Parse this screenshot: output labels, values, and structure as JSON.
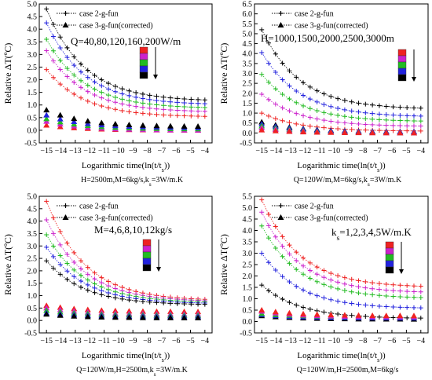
{
  "legend": {
    "series1": "case 2-g-fun",
    "series2": "case 3-g-fun(corrected)"
  },
  "palette": [
    "#000000",
    "#2222dd",
    "#22bb22",
    "#cc22cc",
    "#ee2222"
  ],
  "chart_data": [
    {
      "type": "scatter",
      "annotation": "Q=40,80,120,160,200W/m",
      "xlabel": "Logarithmic time(ln(t/t<sub>s</sub>))",
      "ylabel": "Relative ΔT(ºC)",
      "caption": "H=2500m,M=6kg/s,k<sub>s</sub>=3W/m.K",
      "xlim": [
        -15.5,
        -3.5
      ],
      "ylim": [
        -0.5,
        5.0
      ],
      "yticks": [
        -0.5,
        0.0,
        0.5,
        1.0,
        1.5,
        2.0,
        2.5,
        3.0,
        3.5,
        4.0,
        4.5,
        5.0
      ],
      "xticks": [
        -15,
        -14,
        -13,
        -12,
        -11,
        -10,
        -9,
        -8,
        -7,
        -6,
        -5,
        -4
      ],
      "curves_2g": [
        {
          "start": 2.4,
          "end": 0.55
        },
        {
          "start": 3.15,
          "end": 0.75
        },
        {
          "start": 3.6,
          "end": 0.9
        },
        {
          "start": 4.25,
          "end": 1.05
        },
        {
          "start": 4.8,
          "end": 1.2
        }
      ],
      "curves_3g": [
        {
          "start": 0.2,
          "end": 0.0
        },
        {
          "start": 0.35,
          "end": 0.0
        },
        {
          "start": 0.45,
          "end": 0.05
        },
        {
          "start": 0.6,
          "end": 0.1
        },
        {
          "start": 0.8,
          "end": 0.15
        }
      ]
    },
    {
      "type": "scatter",
      "annotation": "H=1000,1500,2000,2500,3000m",
      "xlabel": "Logarithmic time(ln(t/t<sub>s</sub>))",
      "ylabel": "Relative ΔT(ºC)",
      "caption": "Q=120W/m,M=6kg/s,k<sub>s</sub>=3W/m.K",
      "xlim": [
        -15.5,
        -3.5
      ],
      "ylim": [
        -0.5,
        6.5
      ],
      "yticks": [
        -0.5,
        0.0,
        0.5,
        1.0,
        1.5,
        2.0,
        2.5,
        3.0,
        3.5,
        4.0,
        4.5,
        5.0,
        5.5,
        6.0,
        6.5
      ],
      "xticks": [
        -15,
        -14,
        -13,
        -12,
        -11,
        -10,
        -9,
        -8,
        -7,
        -6,
        -5,
        -4
      ],
      "curves_2g": [
        {
          "start": 5.2,
          "end": 1.25
        },
        {
          "start": 4.05,
          "end": 0.85
        },
        {
          "start": 2.95,
          "end": 0.6
        },
        {
          "start": 1.95,
          "end": 0.35
        },
        {
          "start": 1.0,
          "end": 0.1
        }
      ],
      "curves_3g": [
        {
          "start": 0.55,
          "end": 0.05
        },
        {
          "start": 0.45,
          "end": 0.05
        },
        {
          "start": 0.35,
          "end": 0.0
        },
        {
          "start": 0.25,
          "end": 0.0
        },
        {
          "start": 0.15,
          "end": 0.0
        }
      ]
    },
    {
      "type": "scatter",
      "annotation": "M=4,6,8,10,12kg/s",
      "xlabel": "Logarithmic time(ln(t/t<sub>s</sub>))",
      "ylabel": "Relative ΔT(ºC)",
      "caption": "Q=120W/m,H=2500m,k<sub>s</sub>=3W/m.K",
      "xlim": [
        -15.5,
        -3.5
      ],
      "ylim": [
        -0.5,
        5.0
      ],
      "yticks": [
        -0.5,
        0.0,
        0.5,
        1.0,
        1.5,
        2.0,
        2.5,
        3.0,
        3.5,
        4.0,
        4.5,
        5.0
      ],
      "xticks": [
        -15,
        -14,
        -13,
        -12,
        -11,
        -10,
        -9,
        -8,
        -7,
        -6,
        -5,
        -4
      ],
      "curves_2g": [
        {
          "start": 4.8,
          "end": 0.85
        },
        {
          "start": 4.05,
          "end": 0.8
        },
        {
          "start": 3.45,
          "end": 0.75
        },
        {
          "start": 2.95,
          "end": 0.7
        },
        {
          "start": 2.4,
          "end": 0.65
        }
      ],
      "curves_3g": [
        {
          "start": 0.6,
          "end": 0.35
        },
        {
          "start": 0.5,
          "end": 0.25
        },
        {
          "start": 0.4,
          "end": 0.2
        },
        {
          "start": 0.3,
          "end": 0.15
        },
        {
          "start": 0.25,
          "end": 0.1
        }
      ]
    },
    {
      "type": "scatter",
      "annotation": "k<sub>s</sub>=1,2,3,4,5W/m.K",
      "xlabel": "Logarithmic time(ln(t/t<sub>s</sub>))",
      "ylabel": "Relative ΔT(ºC)",
      "caption": "Q=120W/m,H=2500m,M=6kg/s",
      "xlim": [
        -15.5,
        -3.5
      ],
      "ylim": [
        -0.5,
        5.5
      ],
      "yticks": [
        -0.5,
        0.0,
        0.5,
        1.0,
        1.5,
        2.0,
        2.5,
        3.0,
        3.5,
        4.0,
        4.5,
        5.0,
        5.5
      ],
      "xticks": [
        -15,
        -14,
        -13,
        -12,
        -11,
        -10,
        -9,
        -8,
        -7,
        -6,
        -5,
        -4
      ],
      "curves_2g": [
        {
          "start": 5.35,
          "end": 1.55
        },
        {
          "start": 4.8,
          "end": 1.3
        },
        {
          "start": 4.2,
          "end": 1.05
        },
        {
          "start": 3.0,
          "end": 0.6
        },
        {
          "start": 1.6,
          "end": 0.15
        }
      ],
      "curves_3g": [
        {
          "start": 0.25,
          "end": 0.1
        },
        {
          "start": 0.3,
          "end": 0.15
        },
        {
          "start": 0.35,
          "end": 0.2
        },
        {
          "start": 0.45,
          "end": 0.2
        },
        {
          "start": 0.5,
          "end": 0.25
        }
      ]
    }
  ]
}
